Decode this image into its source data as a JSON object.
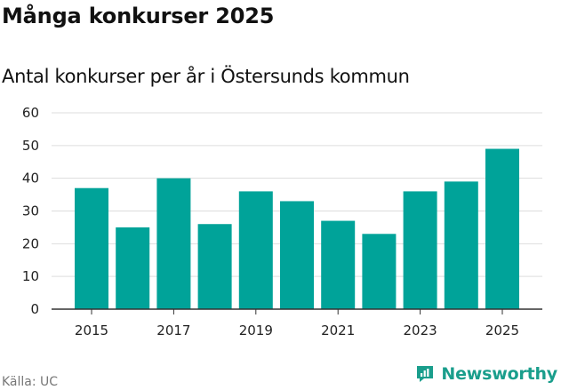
{
  "title": "Många konkurser 2025",
  "subtitle": "Antal konkurser per år i Östersunds kommun",
  "source": "Källa: UC",
  "brand": "Newsworthy",
  "colors": {
    "bar": "#00a399",
    "grid": "#dddddd",
    "axis": "#333333",
    "brand": "#1a9e8c"
  },
  "chart_data": {
    "type": "bar",
    "title": "Många konkurser 2025",
    "subtitle": "Antal konkurser per år i Östersunds kommun",
    "xlabel": "",
    "ylabel": "",
    "categories": [
      "2015",
      "2016",
      "2017",
      "2018",
      "2019",
      "2020",
      "2021",
      "2022",
      "2023",
      "2024",
      "2025"
    ],
    "values": [
      37,
      25,
      40,
      26,
      36,
      33,
      27,
      23,
      36,
      39,
      49
    ],
    "x_tick_labels": [
      "2015",
      "2017",
      "2019",
      "2021",
      "2023",
      "2025"
    ],
    "ylim": [
      0,
      60
    ],
    "y_ticks": [
      0,
      10,
      20,
      30,
      40,
      50,
      60
    ],
    "grid": true,
    "legend": "none"
  }
}
